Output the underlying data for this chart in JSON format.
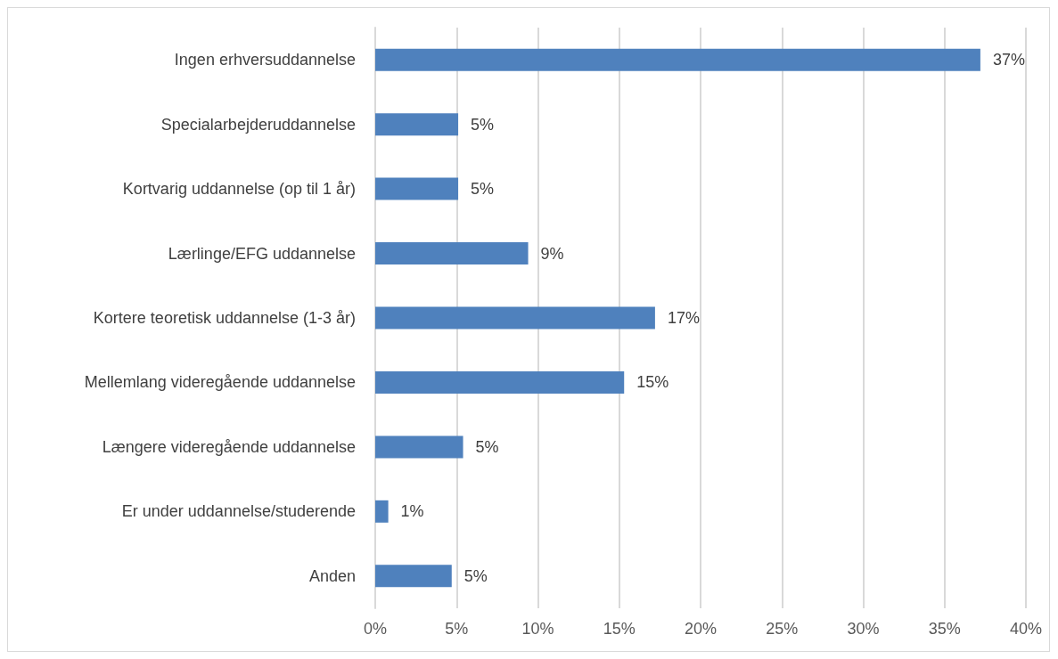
{
  "chart_data": {
    "type": "bar",
    "orientation": "horizontal",
    "categories": [
      "Ingen erhversuddannelse",
      "Specialarbejderuddannelse",
      "Kortvarig uddannelse (op til 1 år)",
      "Lærlinge/EFG uddannelse",
      "Kortere teoretisk uddannelse (1-3 år)",
      "Mellemlang videregående uddannelse",
      "Længere videregående uddannelse",
      "Er under uddannelse/studerende",
      "Anden"
    ],
    "values": [
      37.2,
      5.1,
      5.1,
      9.4,
      17.2,
      15.3,
      5.4,
      0.8,
      4.7
    ],
    "value_labels": [
      "37%",
      "5%",
      "5%",
      "9%",
      "17%",
      "15%",
      "5%",
      "1%",
      "5%"
    ],
    "color": "#4f81bd",
    "xlim": [
      0,
      40
    ],
    "xticks": [
      {
        "value": 0,
        "label": "0%"
      },
      {
        "value": 5,
        "label": "5%"
      },
      {
        "value": 10,
        "label": "10%"
      },
      {
        "value": 15,
        "label": "15%"
      },
      {
        "value": 20,
        "label": "20%"
      },
      {
        "value": 25,
        "label": "25%"
      },
      {
        "value": 30,
        "label": "30%"
      },
      {
        "value": 35,
        "label": "35%"
      },
      {
        "value": 40,
        "label": "40%"
      }
    ],
    "grid": "x"
  }
}
